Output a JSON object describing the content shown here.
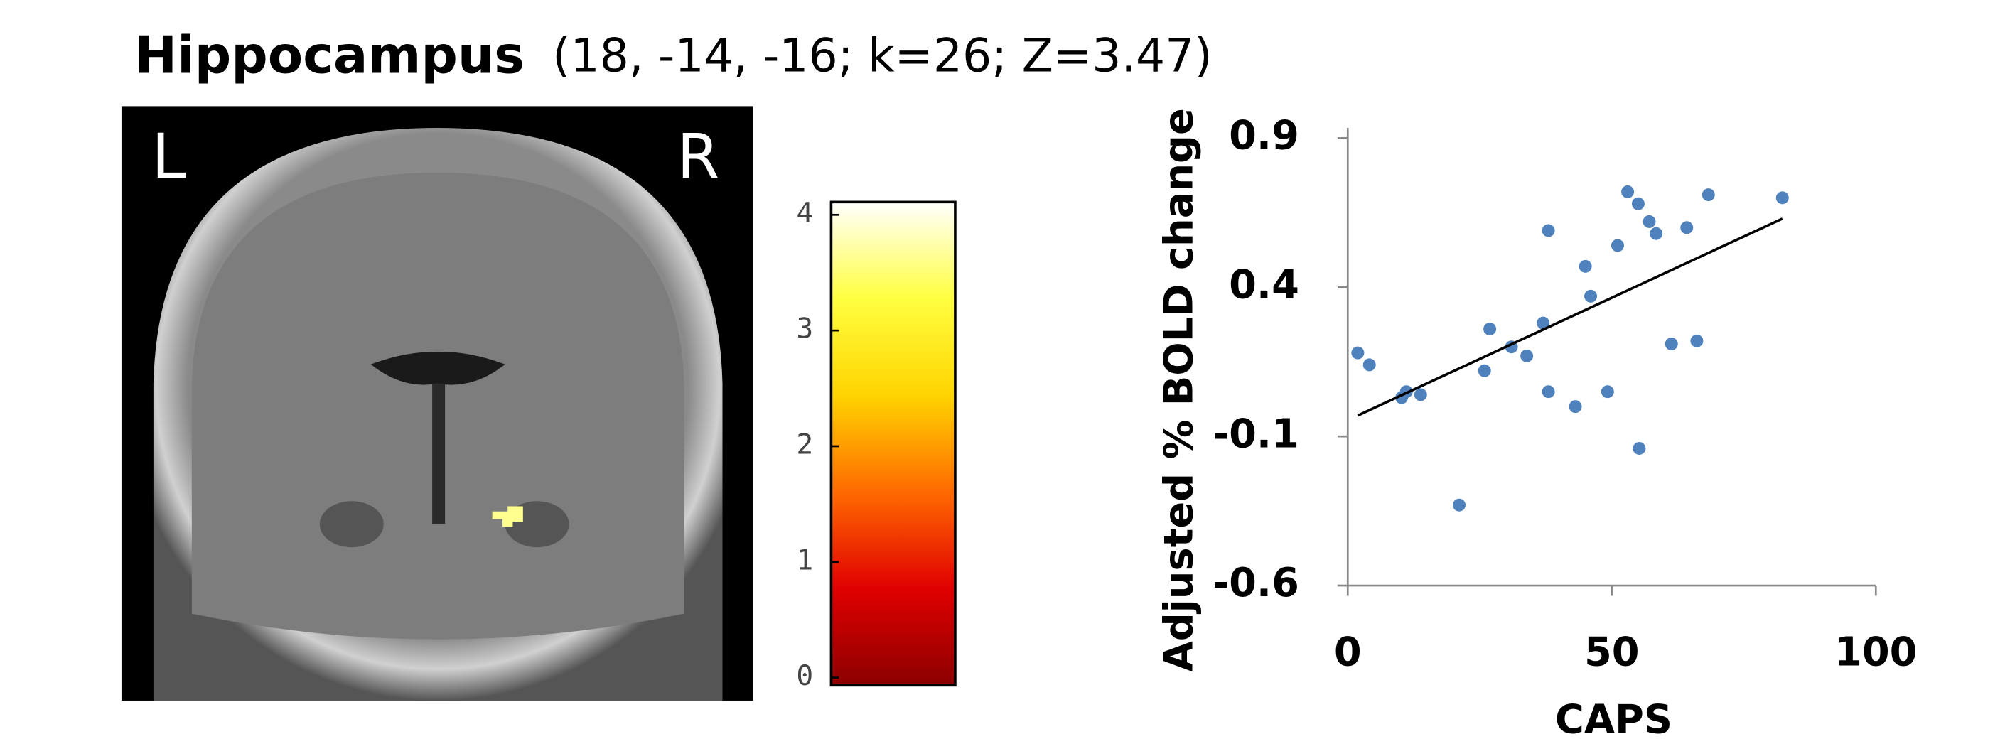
{
  "figure": {
    "title": "Hippocampus",
    "subtitle": "(18, -14, -16; k=26; Z=3.47)",
    "left_label": "L",
    "right_label": "R"
  },
  "colorbar": {
    "lim": [
      0,
      4
    ],
    "ticks": [
      0,
      1,
      2,
      3,
      4
    ],
    "colors": [
      "#8b0000",
      "#e00000",
      "#ff6a00",
      "#ffd400",
      "#ffff40",
      "#ffffff"
    ]
  },
  "chart_data": {
    "type": "scatter",
    "xlabel": "CAPS",
    "ylabel": "Adjusted % BOLD change",
    "x": [
      1.9,
      4.1,
      10.2,
      11.1,
      13.8,
      21.1,
      25.9,
      26.9,
      31,
      33.9,
      37,
      38,
      38,
      43.1,
      45,
      46,
      49.2,
      51.1,
      53,
      55,
      55.2,
      57.1,
      58.4,
      61.3,
      64.2,
      66.1,
      68.3,
      82.3
    ],
    "values": [
      0.18,
      0.14,
      0.03,
      0.05,
      0.04,
      -0.33,
      0.12,
      0.26,
      0.2,
      0.17,
      0.28,
      0.05,
      0.59,
      0,
      0.47,
      0.37,
      0.05,
      0.54,
      0.72,
      0.68,
      -0.14,
      0.62,
      0.58,
      0.21,
      0.6,
      0.22,
      0.71,
      0.7
    ],
    "color": "#4f81bd",
    "trendline": {
      "x": [
        1.9,
        82.3
      ],
      "values": [
        -0.03,
        0.63
      ],
      "color": "#000000"
    },
    "xlim": [
      0,
      100
    ],
    "xticks": [
      0,
      50,
      100
    ],
    "ylim": [
      -0.6,
      0.9
    ],
    "yticks": [
      -0.6,
      -0.1,
      0.4,
      0.9
    ]
  }
}
